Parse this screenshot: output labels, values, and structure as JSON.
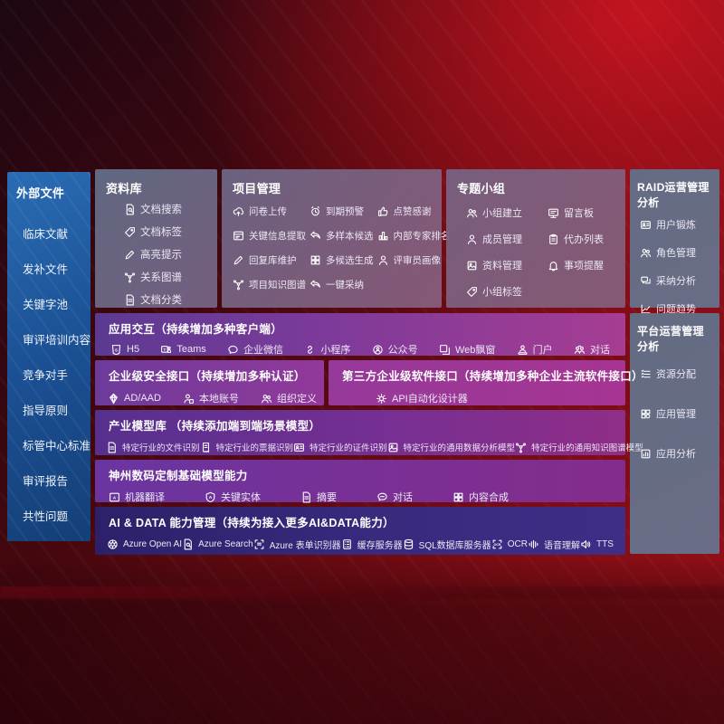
{
  "colors": {
    "background_red": "#9d1019",
    "background_dark": "#1c0712",
    "sidebar_blue": "#1b5195",
    "panel_gray": "#6b7490",
    "right_panel_slate": "#627088",
    "row_purple_start": "#5c3a92",
    "row_purple_end": "#a63d92",
    "row_indigo": "#362879",
    "text": "#ffffff"
  },
  "left_sidebar": {
    "title": "外部文件",
    "items": [
      {
        "label": "临床文献"
      },
      {
        "label": "发补文件"
      },
      {
        "label": "关键字池"
      },
      {
        "label": "审评培训内容"
      },
      {
        "label": "竞争对手"
      },
      {
        "label": "指导原则"
      },
      {
        "label": "标管中心标准"
      },
      {
        "label": "审评报告"
      },
      {
        "label": "共性问题"
      }
    ]
  },
  "repo_panel": {
    "title": "资料库",
    "items": [
      {
        "icon": "doc-search",
        "label": "文档搜索"
      },
      {
        "icon": "tag",
        "label": "文档标签"
      },
      {
        "icon": "pencil",
        "label": "高亮提示"
      },
      {
        "icon": "graph",
        "label": "关系图谱"
      },
      {
        "icon": "doc",
        "label": "文档分类"
      }
    ]
  },
  "project_panel": {
    "title": "项目管理",
    "items": [
      {
        "icon": "cloud-upload",
        "label": "问卷上传"
      },
      {
        "icon": "alarm",
        "label": "到期预警"
      },
      {
        "icon": "thumb-up",
        "label": "点赞感谢"
      },
      {
        "icon": "extract",
        "label": "关键信息提取"
      },
      {
        "icon": "reply-arrow",
        "label": "多样本候选"
      },
      {
        "icon": "podium",
        "label": "内部专家排名"
      },
      {
        "icon": "pencil",
        "label": "回复库维护"
      },
      {
        "icon": "grid",
        "label": "多候选生成"
      },
      {
        "icon": "person",
        "label": "评审员画像"
      },
      {
        "icon": "graph",
        "label": "项目知识图谱"
      },
      {
        "icon": "reply-arrow",
        "label": "一键采纳"
      }
    ]
  },
  "group_panel": {
    "title": "专题小组",
    "items": [
      {
        "icon": "people",
        "label": "小组建立"
      },
      {
        "icon": "message-board",
        "label": "留言板"
      },
      {
        "icon": "person",
        "label": "成员管理"
      },
      {
        "icon": "clipboard",
        "label": "代办列表"
      },
      {
        "icon": "album",
        "label": "资料管理"
      },
      {
        "icon": "bell",
        "label": "事项提醒"
      },
      {
        "icon": "tag",
        "label": "小组标签"
      }
    ]
  },
  "raid_panel": {
    "title": "RAID运营管理分析",
    "items": [
      {
        "icon": "id-card",
        "label": "用户锻炼"
      },
      {
        "icon": "people",
        "label": "角色管理"
      },
      {
        "icon": "qa-chat",
        "label": "采纳分析"
      },
      {
        "icon": "trend-chart",
        "label": "问题趋势"
      }
    ]
  },
  "platform_panel": {
    "title": "平台运营管理分析",
    "items": [
      {
        "icon": "list",
        "label": "资源分配"
      },
      {
        "icon": "app-grid",
        "label": "应用管理"
      },
      {
        "icon": "app-chart",
        "label": "应用分析"
      }
    ]
  },
  "interaction_row": {
    "title": "应用交互（持续增加多种客户端）",
    "items": [
      {
        "icon": "html5",
        "label": "H5"
      },
      {
        "icon": "teams",
        "label": "Teams"
      },
      {
        "icon": "wechat-work",
        "label": "企业微信"
      },
      {
        "icon": "mini-program",
        "label": "小程序"
      },
      {
        "icon": "official-account",
        "label": "公众号"
      },
      {
        "icon": "web-window",
        "label": "Web飘窗"
      },
      {
        "icon": "portal",
        "label": "门户"
      },
      {
        "icon": "dialog",
        "label": "对话"
      }
    ]
  },
  "security_row": {
    "title": "企业级安全接口（持续增加多种认证）",
    "items": [
      {
        "icon": "diamond",
        "label": "AD/AAD"
      },
      {
        "icon": "person-badge",
        "label": "本地账号"
      },
      {
        "icon": "people",
        "label": "组织定义"
      }
    ]
  },
  "thirdparty_row": {
    "title": "第三方企业级软件接口（持续增加多种企业主流软件接口）",
    "items": [
      {
        "icon": "gear",
        "label": "API自动化设计器"
      }
    ]
  },
  "industry_row": {
    "title": "产业模型库 （持续添加端到端场景模型）",
    "items": [
      {
        "icon": "doc",
        "label": "特定行业的文件识别"
      },
      {
        "icon": "receipt",
        "label": "特定行业的票据识别"
      },
      {
        "icon": "id-card",
        "label": "特定行业的证件识别"
      },
      {
        "icon": "album",
        "label": "特定行业的通用数据分析模型"
      },
      {
        "icon": "graph",
        "label": "特定行业的通用知识图谱模型"
      }
    ]
  },
  "foundation_row": {
    "title": "神州数码定制基础模型能力",
    "items": [
      {
        "icon": "translate",
        "label": "机器翻译"
      },
      {
        "icon": "shield-a",
        "label": "关键实体"
      },
      {
        "icon": "doc",
        "label": "摘要"
      },
      {
        "icon": "chat",
        "label": "对话"
      },
      {
        "icon": "grid",
        "label": "内容合成"
      }
    ]
  },
  "aidata_row": {
    "title": "AI & DATA 能力管理（持续为接入更多AI&DATA能力）",
    "items": [
      {
        "icon": "openai",
        "label": "Azure Open AI"
      },
      {
        "icon": "doc-search",
        "label": "Azure Search"
      },
      {
        "icon": "form-recognizer",
        "label": "Azure 表单识别器"
      },
      {
        "icon": "server",
        "label": "缓存服务器"
      },
      {
        "icon": "database",
        "label": "SQL数据库服务器"
      },
      {
        "icon": "ocr",
        "label": "OCR"
      },
      {
        "icon": "speech",
        "label": "语音理解"
      },
      {
        "icon": "speaker",
        "label": "TTS"
      }
    ]
  }
}
